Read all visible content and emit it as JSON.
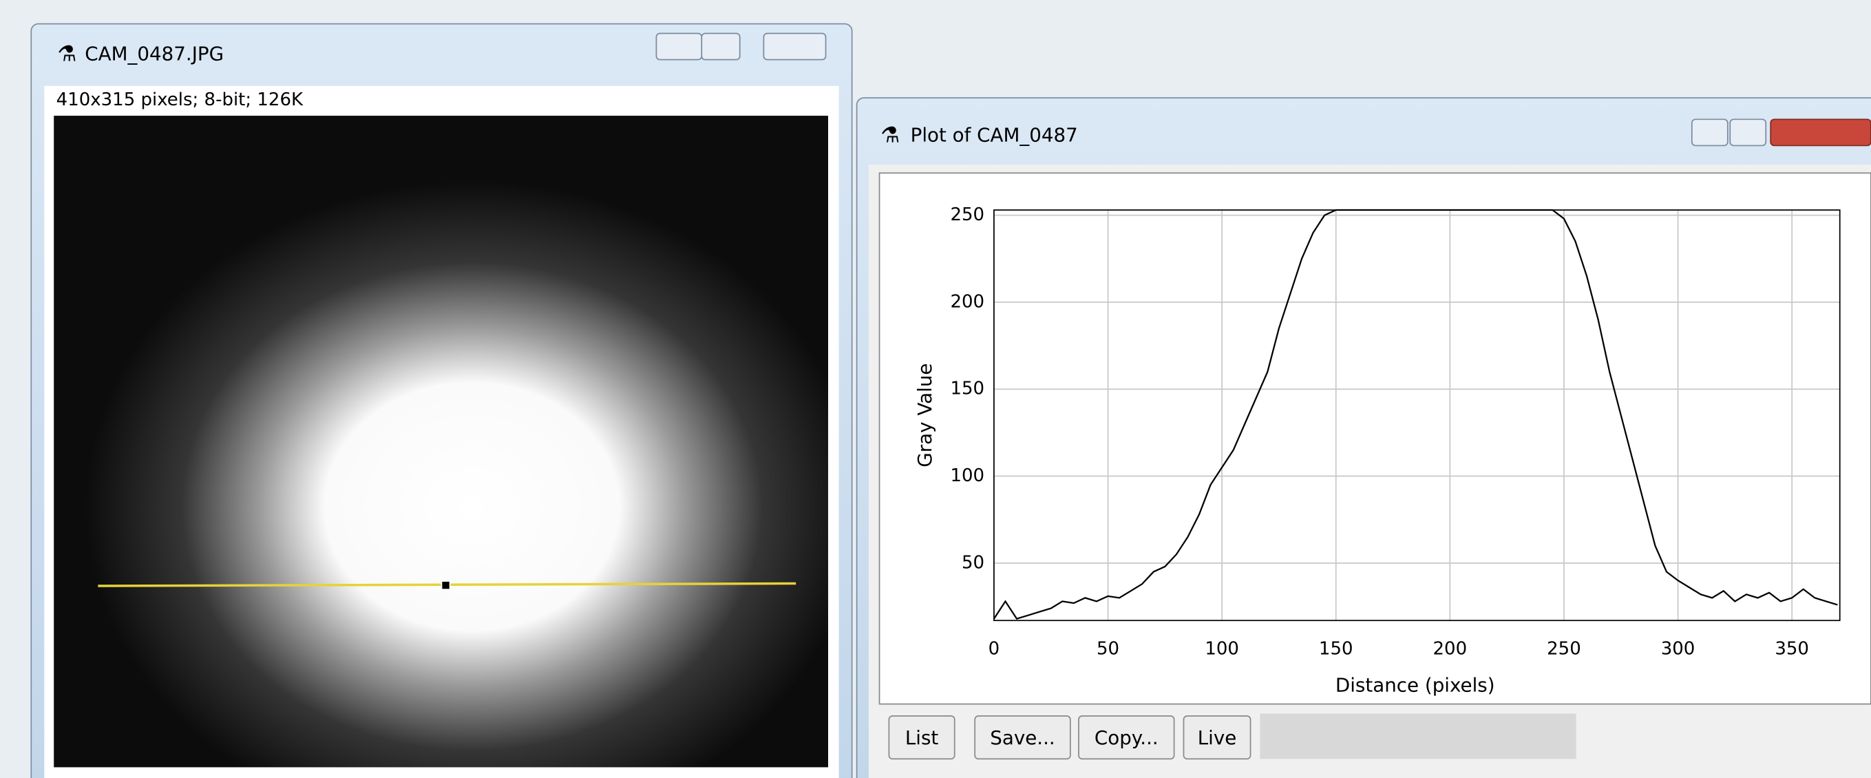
{
  "image_window": {
    "title": "CAM_0487.JPG",
    "info": "410x315 pixels; 8-bit; 126K"
  },
  "plot_window": {
    "title": "Plot of CAM_0487",
    "buttons": [
      "List",
      "Save...",
      "Copy...",
      "Live"
    ]
  },
  "chart_data": {
    "type": "line",
    "x_label": "Distance (pixels)",
    "y_label": "Gray Value",
    "x": [
      0,
      5,
      10,
      15,
      20,
      25,
      30,
      35,
      40,
      45,
      50,
      55,
      60,
      65,
      70,
      75,
      80,
      85,
      90,
      95,
      100,
      105,
      110,
      115,
      120,
      125,
      130,
      135,
      140,
      145,
      150,
      155,
      160,
      165,
      170,
      175,
      180,
      185,
      190,
      195,
      200,
      205,
      210,
      215,
      220,
      225,
      230,
      235,
      240,
      245,
      250,
      255,
      260,
      265,
      270,
      275,
      280,
      285,
      290,
      295,
      300,
      305,
      310,
      315,
      320,
      325,
      330,
      335,
      340,
      345,
      350,
      355,
      360,
      365,
      370
    ],
    "series": [
      {
        "color": "#000000",
        "values": [
          18,
          28,
          18,
          20,
          22,
          24,
          28,
          27,
          30,
          28,
          31,
          30,
          34,
          38,
          45,
          48,
          55,
          65,
          78,
          95,
          105,
          115,
          130,
          145,
          160,
          185,
          205,
          225,
          240,
          250,
          253,
          253,
          253,
          253,
          253,
          253,
          253,
          253,
          253,
          253,
          253,
          253,
          253,
          253,
          253,
          253,
          253,
          253,
          253,
          253,
          248,
          235,
          215,
          190,
          160,
          135,
          110,
          85,
          60,
          45,
          40,
          36,
          32,
          30,
          34,
          28,
          32,
          30,
          33,
          28,
          30,
          35,
          30,
          28,
          26
        ]
      }
    ],
    "xlim": [
      0,
      371
    ],
    "ylim": [
      17,
      253
    ],
    "xticks": [
      0,
      50,
      100,
      150,
      200,
      250,
      300,
      350
    ],
    "yticks": [
      50,
      100,
      150,
      200,
      250
    ],
    "grid": true
  }
}
